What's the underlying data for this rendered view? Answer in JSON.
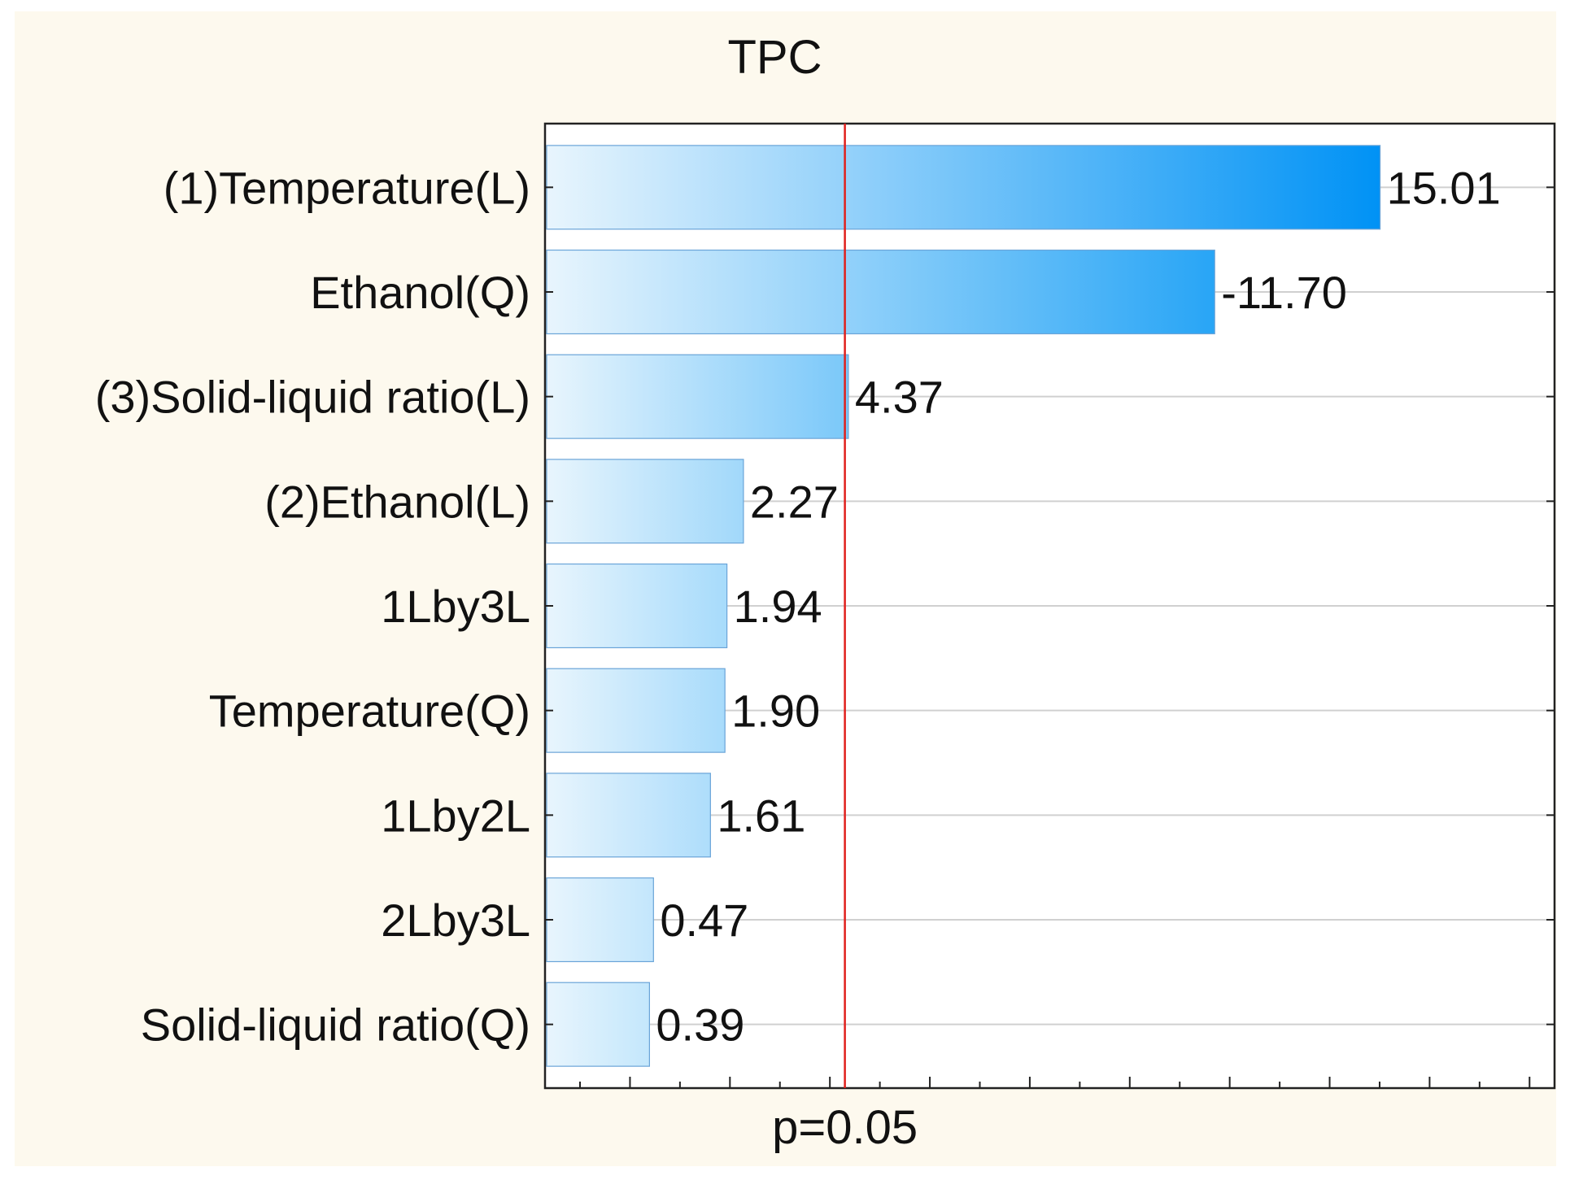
{
  "chart_data": {
    "type": "bar",
    "orientation": "horizontal",
    "title": "TPC",
    "categories": [
      "(1)Temperature(L)",
      "Ethanol(Q)",
      "(3)Solid-liquid ratio(L)",
      "(2)Ethanol(L)",
      "1Lby3L",
      "Temperature(Q)",
      "1Lby2L",
      "2Lby3L",
      "Solid-liquid ratio(Q)"
    ],
    "values": [
      15.01,
      -11.7,
      4.37,
      2.27,
      1.94,
      1.9,
      1.61,
      0.47,
      0.39
    ],
    "value_labels": [
      "15.01",
      "-11.70",
      "4.37",
      "2.27",
      "1.94",
      "1.90",
      "1.61",
      "0.47",
      "0.39"
    ],
    "xlim": [
      -1.7,
      18.5
    ],
    "reference_line": {
      "value": 4.3,
      "label": "p=0.05",
      "color": "#e0201c"
    },
    "xlabel": "",
    "ylabel": "",
    "grid": true,
    "colors": {
      "bar_light": "#e8f5fd",
      "bar_mid": "#5bbcf8",
      "bar_dark": "#0092f5",
      "grid": "#d0d0d0"
    }
  }
}
